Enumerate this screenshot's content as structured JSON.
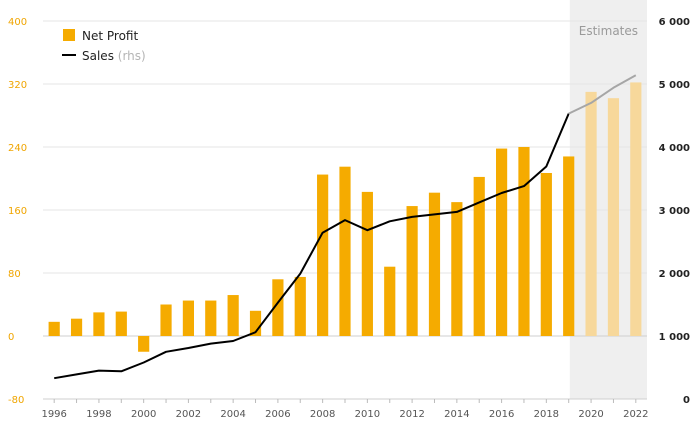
{
  "chart_data": {
    "type": "bar+line",
    "x": [
      1996,
      1997,
      1998,
      1999,
      2000,
      2001,
      2002,
      2003,
      2004,
      2005,
      2006,
      2007,
      2008,
      2009,
      2010,
      2011,
      2012,
      2013,
      2014,
      2015,
      2016,
      2017,
      2018,
      2019,
      2020,
      2021,
      2022
    ],
    "x_tick_labels": [
      "1996",
      "1998",
      "2000",
      "2002",
      "2004",
      "2006",
      "2008",
      "2010",
      "2012",
      "2014",
      "2016",
      "2018",
      "2020",
      "2022"
    ],
    "series": [
      {
        "name": "Net Profit",
        "type": "bar",
        "axis": "left",
        "color": "#f5ab00",
        "estimate_color": "#f7d89b",
        "values": [
          18,
          22,
          30,
          31,
          -20,
          40,
          45,
          45,
          52,
          32,
          72,
          75,
          205,
          215,
          183,
          88,
          165,
          182,
          170,
          202,
          238,
          240,
          207,
          228,
          310,
          302,
          322
        ]
      },
      {
        "name": "Sales",
        "name_suffix": "(rhs)",
        "type": "line",
        "axis": "right",
        "color": "#000000",
        "estimate_color": "#a6a6a6",
        "values": [
          330,
          390,
          450,
          440,
          580,
          750,
          810,
          880,
          920,
          1060,
          1530,
          1990,
          2640,
          2840,
          2680,
          2820,
          2890,
          2930,
          2970,
          3120,
          3270,
          3380,
          3690,
          4530,
          4700,
          4940,
          5140
        ]
      }
    ],
    "estimates_from": 2020,
    "estimates_label": "Estimates",
    "y_left": {
      "lim": [
        -80,
        400
      ],
      "ticks": [
        "-80",
        "0",
        "80",
        "160",
        "240",
        "320",
        "400"
      ],
      "color": "#f0a500"
    },
    "y_right": {
      "lim": [
        0,
        6000
      ],
      "ticks": [
        "0",
        "1 000",
        "2 000",
        "3 000",
        "4 000",
        "5 000",
        "6 000"
      ]
    },
    "grid": true,
    "legend_position": "top-left"
  }
}
